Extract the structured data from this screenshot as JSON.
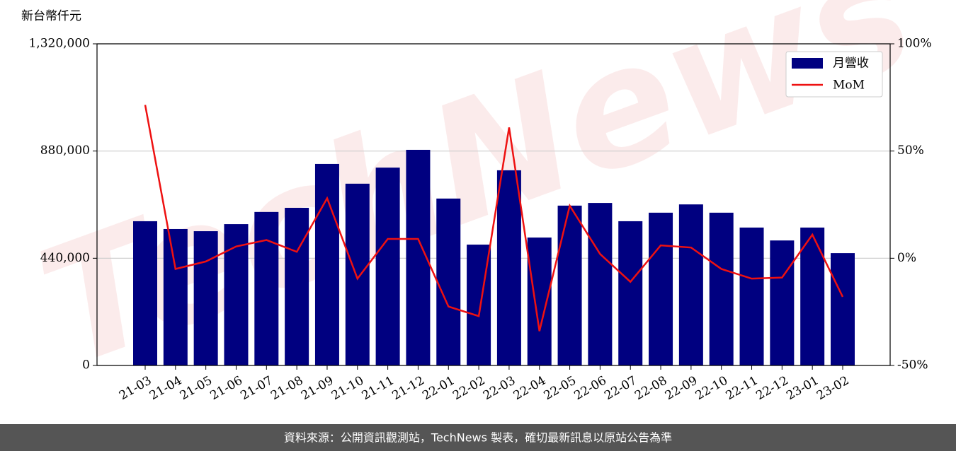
{
  "chart_data": {
    "type": "bar",
    "y_label": "新台幣仟元",
    "watermark": "TechNews",
    "footer": "資料來源：公開資訊觀測站，TechNews 製表，確切最新訊息以原站公告為準",
    "categories": [
      "21-03",
      "21-04",
      "21-05",
      "21-06",
      "21-07",
      "21-08",
      "21-09",
      "21-10",
      "21-11",
      "21-12",
      "22-01",
      "22-02",
      "22-03",
      "22-04",
      "22-05",
      "22-06",
      "22-07",
      "22-08",
      "22-09",
      "22-10",
      "22-11",
      "22-12",
      "23-01",
      "23-02"
    ],
    "series": [
      {
        "name": "月營收",
        "type": "bar",
        "color": "#000080",
        "values": [
          592000,
          560000,
          551000,
          580000,
          630000,
          647000,
          827000,
          746000,
          812000,
          885000,
          685000,
          496000,
          801000,
          525000,
          656000,
          667000,
          592000,
          627000,
          661000,
          627000,
          566000,
          513000,
          566000,
          461000
        ]
      },
      {
        "name": "MoM",
        "type": "line",
        "axis": "y2",
        "color": "#ee1111",
        "values": [
          71.5,
          -5,
          -1.5,
          5.5,
          8.5,
          3,
          28,
          -9.5,
          9,
          9,
          -22.5,
          -27,
          61,
          -34,
          24.5,
          2,
          -11,
          6,
          5,
          -5,
          -9.5,
          -9,
          11,
          -18
        ]
      }
    ],
    "ylim": [
      0,
      1320000
    ],
    "yticks": [
      0,
      {
        "value": 440000,
        "label": "440,000"
      },
      {
        "value": 880000,
        "label": "880,000"
      },
      {
        "value": 1320000,
        "label": "1,320,000"
      }
    ],
    "y2lim": [
      -50,
      100
    ],
    "y2ticks": [
      {
        "value": -50,
        "label": "-50%"
      },
      {
        "value": 0,
        "label": "0%"
      },
      {
        "value": 50,
        "label": "50%"
      },
      {
        "value": 100,
        "label": "100%"
      }
    ],
    "grid": true,
    "legend": "upper right"
  }
}
